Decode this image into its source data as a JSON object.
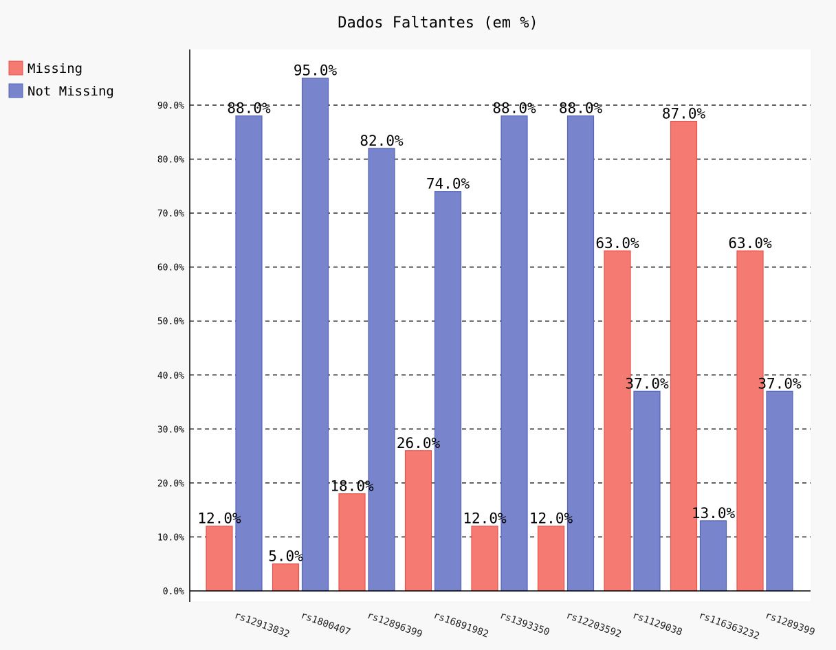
{
  "chart_data": {
    "type": "bar",
    "title": "Dados Faltantes (em %)",
    "categories": [
      "rs12913832",
      "rs1800407",
      "rs12896399",
      "rs16891982",
      "rs1393350",
      "rs12203592",
      "rs1129038",
      "rs116363232",
      "rs1289399"
    ],
    "series": [
      {
        "name": "Missing",
        "color": "#f47a72",
        "stroke": "#e8524a",
        "values": [
          12,
          5,
          18,
          26,
          12,
          12,
          63,
          87,
          63
        ]
      },
      {
        "name": "Not Missing",
        "color": "#7884cc",
        "stroke": "#5563bb",
        "values": [
          88,
          95,
          82,
          74,
          88,
          88,
          37,
          13,
          37
        ]
      }
    ],
    "value_labels": {
      "Missing": [
        "12.0%",
        "5.0%",
        "18.0%",
        "26.0%",
        "12.0%",
        "12.0%",
        "63.0%",
        "87.0%",
        "63.0%"
      ],
      "Not Missing": [
        "88.0%",
        "95.0%",
        "82.0%",
        "74.0%",
        "88.0%",
        "88.0%",
        "37.0%",
        "13.0%",
        "37.0%"
      ]
    },
    "yticks": [
      0,
      10,
      20,
      30,
      40,
      50,
      60,
      70,
      80,
      90
    ],
    "ytick_labels": [
      "0.0%",
      "10.0%",
      "20.0%",
      "30.0%",
      "40.0%",
      "50.0%",
      "60.0%",
      "70.0%",
      "80.0%",
      "90.0%"
    ],
    "ylim": [
      0,
      100
    ],
    "grid": "horizontal dashed",
    "legend_position": "top-left"
  }
}
